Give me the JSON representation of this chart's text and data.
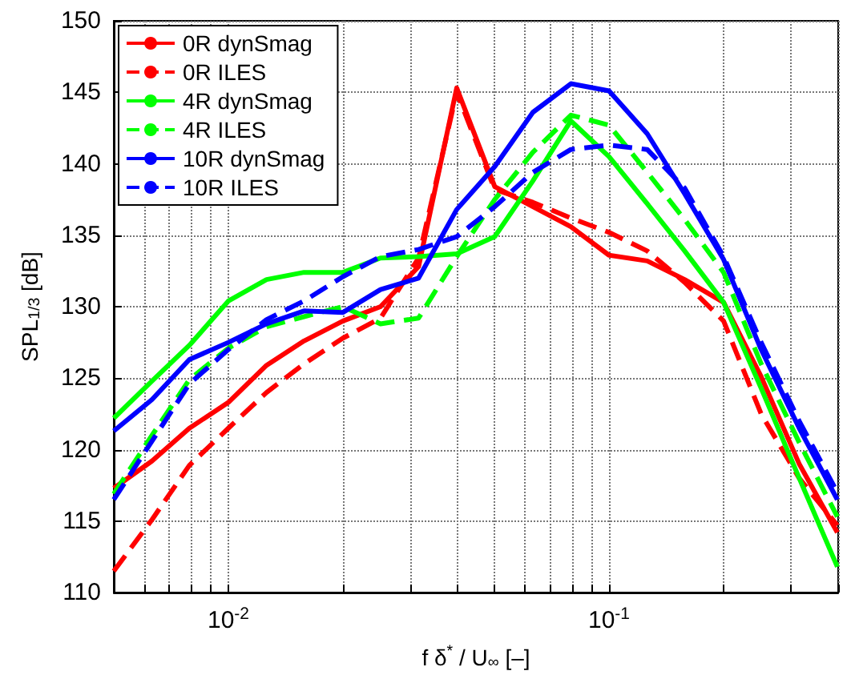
{
  "chart_data": {
    "type": "line",
    "xlabel": "f δ$^{*}$ / U$_{∞}$ [–]",
    "ylabel": "SPL$_{1/3}$ [dB]",
    "log": "x",
    "grid": true,
    "legend": "top left",
    "xlim": [
      0.005,
      0.4
    ],
    "ylim": [
      110,
      150
    ],
    "xticks": [
      {
        "value": 0.005,
        "label": null
      },
      {
        "value": 0.006,
        "label": null
      },
      {
        "value": 0.007,
        "label": null
      },
      {
        "value": 0.008,
        "label": null
      },
      {
        "value": 0.009,
        "label": null
      },
      {
        "value": 0.01,
        "label": "10$^{-2}$"
      },
      {
        "value": 0.02,
        "label": null
      },
      {
        "value": 0.03,
        "label": null
      },
      {
        "value": 0.04,
        "label": null
      },
      {
        "value": 0.05,
        "label": null
      },
      {
        "value": 0.06,
        "label": null
      },
      {
        "value": 0.07,
        "label": null
      },
      {
        "value": 0.08,
        "label": null
      },
      {
        "value": 0.09,
        "label": null
      },
      {
        "value": 0.1,
        "label": "10$^{-1}$"
      },
      {
        "value": 0.2,
        "label": null
      },
      {
        "value": 0.3,
        "label": null
      },
      {
        "value": 0.4,
        "label": null
      }
    ],
    "yticks": [
      110,
      115,
      120,
      125,
      130,
      135,
      140,
      145,
      150
    ],
    "x": [
      0.005,
      0.0063,
      0.0079,
      0.01,
      0.0126,
      0.0158,
      0.02,
      0.0251,
      0.0316,
      0.0398,
      0.0501,
      0.0631,
      0.0794,
      0.1,
      0.126,
      0.158,
      0.2,
      0.251,
      0.316,
      0.398
    ],
    "series": [
      {
        "name": "0R dynSmag",
        "color": "#ff0000",
        "line_style": "solid",
        "values": [
          117.3,
          119.2,
          121.5,
          123.3,
          125.9,
          127.6,
          129,
          130,
          132.8,
          145.3,
          138.4,
          137,
          135.6,
          133.6,
          133.2,
          131.9,
          130.3,
          125.1,
          119,
          114.2
        ]
      },
      {
        "name": "0R ILES",
        "color": "#ff0000",
        "line_style": "dashed",
        "values": [
          111.5,
          115.1,
          118.9,
          121.5,
          124,
          126,
          127.8,
          129.2,
          133.4,
          145,
          138.2,
          137.3,
          136.2,
          135.2,
          133.9,
          131.7,
          129,
          122.5,
          118,
          114.7
        ]
      },
      {
        "name": "4R dynSmag",
        "color": "#00ff00",
        "line_style": "solid",
        "values": [
          122.2,
          124.8,
          127.3,
          130.4,
          131.9,
          132.4,
          132.4,
          133.4,
          133.5,
          133.7,
          134.9,
          138.8,
          143,
          140.5,
          137.2,
          133.9,
          130.3,
          124.3,
          118,
          111.8
        ]
      },
      {
        "name": "4R ILES",
        "color": "#00ff00",
        "line_style": "dashed",
        "values": [
          116.9,
          121,
          124.9,
          127.1,
          128.6,
          129.3,
          130,
          128.8,
          129.2,
          133.5,
          137.5,
          140.8,
          143.4,
          142.7,
          139.4,
          136.1,
          132.4,
          126,
          120.5,
          115.3
        ]
      },
      {
        "name": "10R dynSmag",
        "color": "#0000ff",
        "line_style": "solid",
        "values": [
          121.3,
          123.5,
          126.3,
          127.5,
          128.8,
          129.7,
          129.6,
          131.2,
          132,
          136.8,
          139.8,
          143.6,
          145.6,
          145.1,
          142.1,
          137.9,
          133.3,
          127,
          121.5,
          116.5
        ]
      },
      {
        "name": "10R ILES",
        "color": "#0000ff",
        "line_style": "dashed",
        "values": [
          116.5,
          120.6,
          124.6,
          127,
          129.1,
          130.4,
          132.1,
          133.5,
          134,
          134.9,
          137,
          139.4,
          141,
          141.3,
          141,
          138.3,
          133.5,
          127.5,
          122,
          117
        ]
      }
    ]
  }
}
